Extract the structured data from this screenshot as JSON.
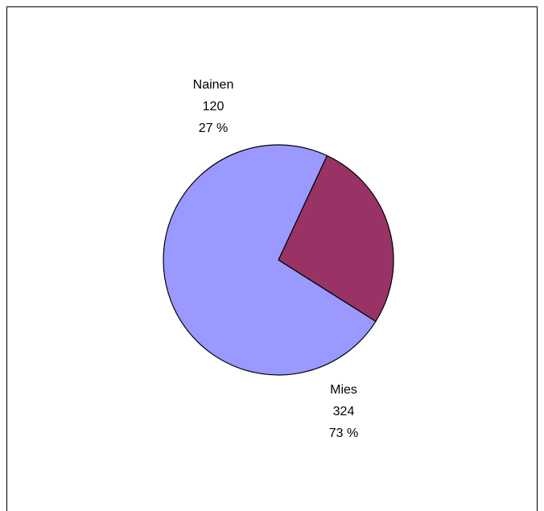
{
  "chart_data": {
    "type": "pie",
    "title": "",
    "slices": [
      {
        "name": "Nainen",
        "value": 120,
        "percent_label": "27 %",
        "color": "#993366"
      },
      {
        "name": "Mies",
        "value": 324,
        "percent_label": "73 %",
        "color": "#9999FF"
      }
    ],
    "legend": "none",
    "slice_border_color": "#000000",
    "background_color": "#FFFFFF",
    "frame_border_color": "#000000"
  }
}
